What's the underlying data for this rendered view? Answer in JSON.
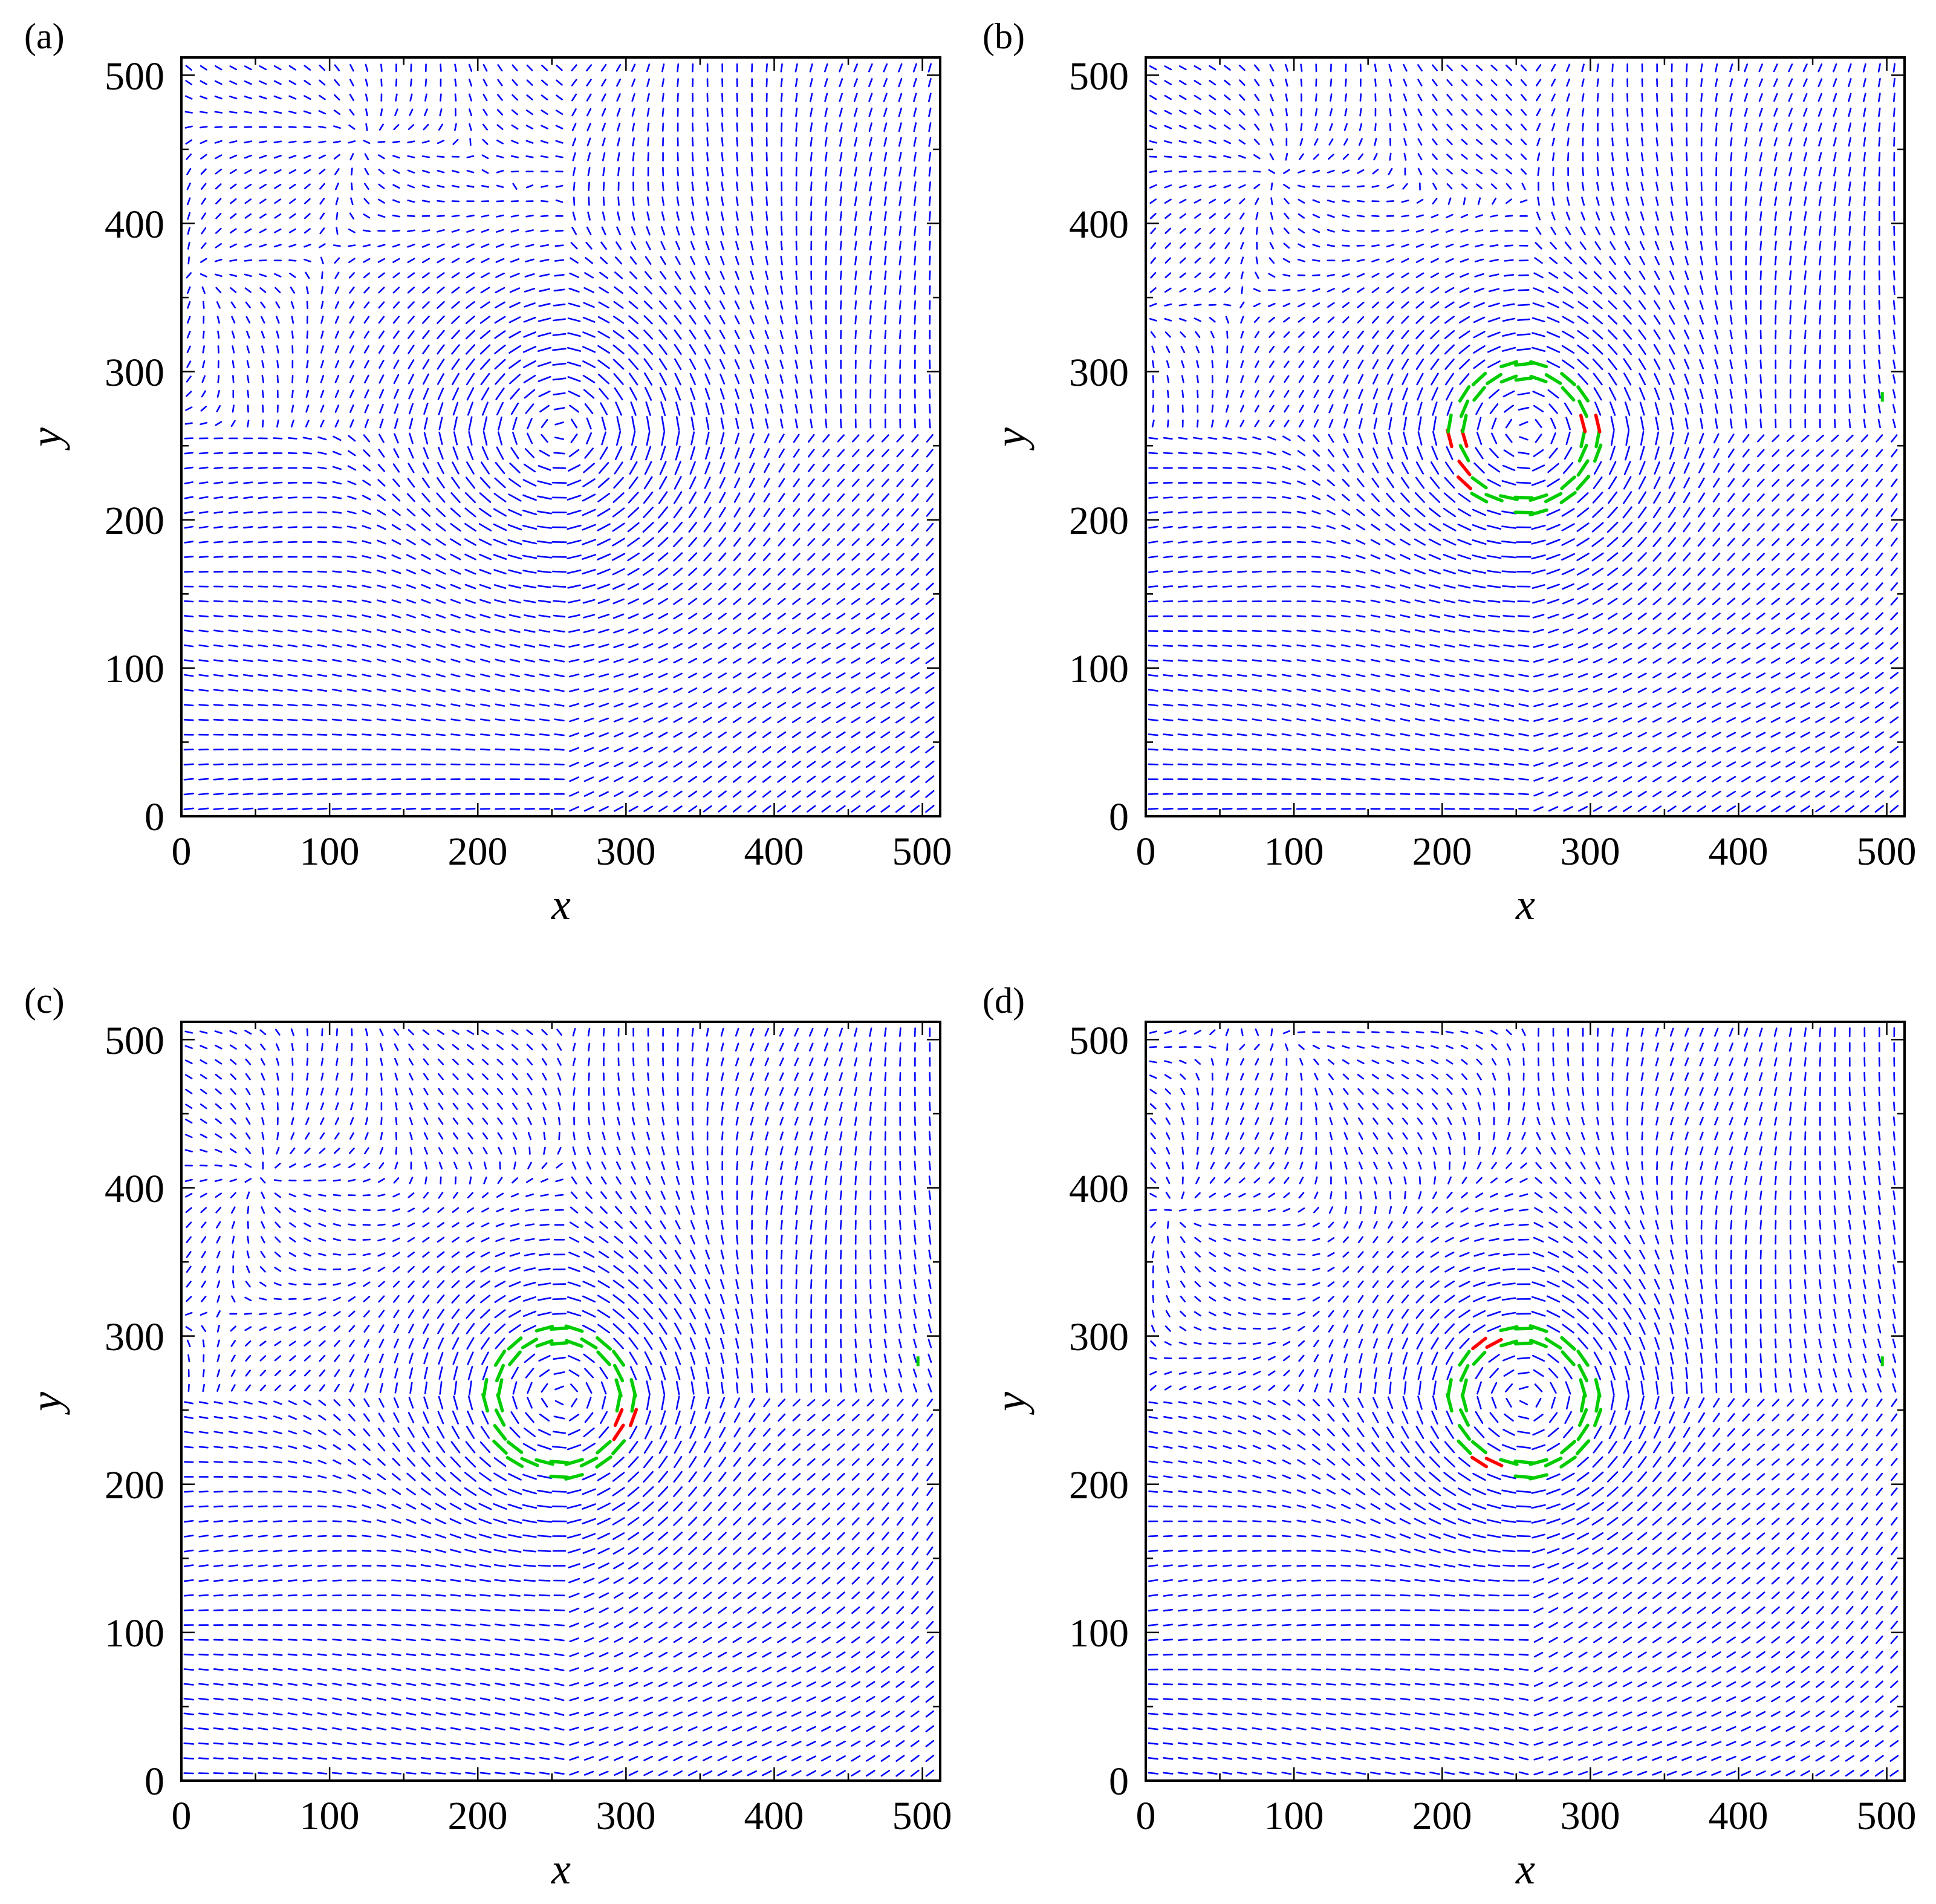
{
  "figure": {
    "colors": {
      "background": "#ffffff",
      "frame": "#000000",
      "arrow_background": "#0000ff",
      "arrow_vortex_ring": "#00cc00",
      "arrow_highlight": "#ff0000"
    }
  },
  "chart_data": [
    {
      "type": "vector-field",
      "panel_label": "(a)",
      "xlabel": "x",
      "ylabel": "y",
      "xlim": [
        0,
        512
      ],
      "ylim": [
        0,
        512
      ],
      "xticks": [
        "0",
        "100",
        "200",
        "300",
        "400",
        "500"
      ],
      "yticks": [
        "0",
        "100",
        "200",
        "300",
        "400",
        "500"
      ],
      "grid": false,
      "vortex_center": [
        256,
        256
      ],
      "vortex_core_radius": 55,
      "arrow_spacing": 10,
      "green_ring": false,
      "red_segments_deg": [],
      "stray_green_point": null
    },
    {
      "type": "vector-field",
      "panel_label": "(b)",
      "xlabel": "x",
      "ylabel": "y",
      "xlim": [
        0,
        512
      ],
      "ylim": [
        0,
        512
      ],
      "xticks": [
        "0",
        "100",
        "200",
        "300",
        "400",
        "500"
      ],
      "yticks": [
        "0",
        "100",
        "200",
        "300",
        "400",
        "500"
      ],
      "grid": false,
      "vortex_center": [
        256,
        256
      ],
      "vortex_core_radius": 55,
      "arrow_spacing": 10,
      "green_ring": true,
      "ring_radius": [
        38,
        52
      ],
      "red_segments_deg": [
        185,
        215,
        10
      ],
      "stray_green_point": [
        497,
        283
      ]
    },
    {
      "type": "vector-field",
      "panel_label": "(c)",
      "xlabel": "x",
      "ylabel": "y",
      "xlim": [
        0,
        512
      ],
      "ylim": [
        0,
        512
      ],
      "xticks": [
        "0",
        "100",
        "200",
        "300",
        "400",
        "500"
      ],
      "yticks": [
        "0",
        "100",
        "200",
        "300",
        "400",
        "500"
      ],
      "grid": false,
      "vortex_center": [
        256,
        256
      ],
      "vortex_core_radius": 55,
      "arrow_spacing": 10,
      "green_ring": true,
      "ring_radius": [
        38,
        52
      ],
      "red_segments_deg": [
        340
      ],
      "stray_green_point": [
        497,
        283
      ]
    },
    {
      "type": "vector-field",
      "panel_label": "(d)",
      "xlabel": "x",
      "ylabel": "y",
      "xlim": [
        0,
        512
      ],
      "ylim": [
        0,
        512
      ],
      "xticks": [
        "0",
        "100",
        "200",
        "300",
        "400",
        "500"
      ],
      "yticks": [
        "0",
        "100",
        "200",
        "300",
        "400",
        "500"
      ],
      "grid": false,
      "vortex_center": [
        256,
        256
      ],
      "vortex_core_radius": 55,
      "arrow_spacing": 10,
      "green_ring": true,
      "ring_radius": [
        38,
        52
      ],
      "red_segments_deg": [
        125,
        240
      ],
      "stray_green_point": [
        497,
        283
      ]
    }
  ]
}
